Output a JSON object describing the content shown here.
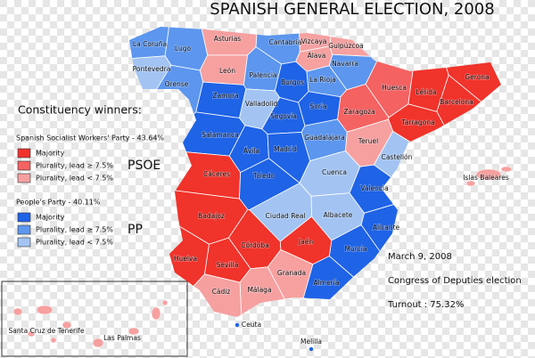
{
  "title": "SPANISH GENERAL ELECTION, 2008",
  "legend": {
    "heading": "Constituency winners:",
    "parties": [
      {
        "name": "Spanish Socialist Workers' Party - 43.64%",
        "short": "PSOE",
        "entries": [
          {
            "label": "Majority",
            "color": "#f0332b"
          },
          {
            "label": "Plurality, lead ≥ 7.5%",
            "color": "#f46262"
          },
          {
            "label": "Plurality, lead < 7.5%",
            "color": "#f6a0a0"
          }
        ]
      },
      {
        "name": "People's Party - 40.11%",
        "short": "PP",
        "entries": [
          {
            "label": "Majority",
            "color": "#1f63e6"
          },
          {
            "label": "Plurality, lead ≥ 7.5%",
            "color": "#5c96ee"
          },
          {
            "label": "Plurality, lead < 7.5%",
            "color": "#a3c4f3"
          }
        ]
      }
    ]
  },
  "info": {
    "date": "March 9, 2008",
    "election": "Congress of Deputies election",
    "turnout": "Turnout : 75.32%"
  },
  "provinces": [
    {
      "name": "La Coruña",
      "color": "#5c96ee"
    },
    {
      "name": "Lugo",
      "color": "#5c96ee"
    },
    {
      "name": "Pontevedra",
      "color": "#a3c4f3"
    },
    {
      "name": "Orense",
      "color": "#5c96ee"
    },
    {
      "name": "Asturias",
      "color": "#f6a0a0"
    },
    {
      "name": "Cantabria",
      "color": "#5c96ee"
    },
    {
      "name": "Vizcaya",
      "color": "#f6a0a0"
    },
    {
      "name": "Gulpúzcoa",
      "color": "#f6a0a0"
    },
    {
      "name": "Álava",
      "color": "#f6a0a0"
    },
    {
      "name": "Navarra",
      "color": "#5c96ee"
    },
    {
      "name": "León",
      "color": "#f6a0a0"
    },
    {
      "name": "Palencia",
      "color": "#5c96ee"
    },
    {
      "name": "Burgos",
      "color": "#1f63e6"
    },
    {
      "name": "La Rioja",
      "color": "#5c96ee"
    },
    {
      "name": "Zamora",
      "color": "#1f63e6"
    },
    {
      "name": "Valladolid",
      "color": "#a3c4f3"
    },
    {
      "name": "Soria",
      "color": "#1f63e6"
    },
    {
      "name": "Segovia",
      "color": "#1f63e6"
    },
    {
      "name": "Salamanca",
      "color": "#1f63e6"
    },
    {
      "name": "Ávila",
      "color": "#1f63e6"
    },
    {
      "name": "Madrid",
      "color": "#1f63e6"
    },
    {
      "name": "Guadalajara",
      "color": "#5c96ee"
    },
    {
      "name": "Huesca",
      "color": "#f46262"
    },
    {
      "name": "Lérida",
      "color": "#f0332b"
    },
    {
      "name": "Gerona",
      "color": "#f0332b"
    },
    {
      "name": "Barcelona",
      "color": "#f0332b"
    },
    {
      "name": "Zaragoza",
      "color": "#f46262"
    },
    {
      "name": "Tarragona",
      "color": "#f0332b"
    },
    {
      "name": "Teruel",
      "color": "#f6a0a0"
    },
    {
      "name": "Castellón",
      "color": "#a3c4f3"
    },
    {
      "name": "Cáceres",
      "color": "#f0332b"
    },
    {
      "name": "Toledo",
      "color": "#1f63e6"
    },
    {
      "name": "Cuenca",
      "color": "#a3c4f3"
    },
    {
      "name": "Valencia",
      "color": "#1f63e6"
    },
    {
      "name": "Badajoz",
      "color": "#f0332b"
    },
    {
      "name": "Ciudad Real",
      "color": "#a3c4f3"
    },
    {
      "name": "Albacete",
      "color": "#a3c4f3"
    },
    {
      "name": "Alicante",
      "color": "#1f63e6"
    },
    {
      "name": "Murcia",
      "color": "#1f63e6"
    },
    {
      "name": "Córdoba",
      "color": "#f0332b"
    },
    {
      "name": "Jaén",
      "color": "#f0332b"
    },
    {
      "name": "Huelva",
      "color": "#f0332b"
    },
    {
      "name": "Sevilla",
      "color": "#f0332b"
    },
    {
      "name": "Granada",
      "color": "#f6a0a0"
    },
    {
      "name": "Almería",
      "color": "#1f63e6"
    },
    {
      "name": "Málaga",
      "color": "#f6a0a0"
    },
    {
      "name": "Cádiz",
      "color": "#f6a0a0"
    },
    {
      "name": "Islas Baleares",
      "color": "#f6a0a0"
    },
    {
      "name": "Santa Cruz de Tenerife",
      "color": "#f6a0a0"
    },
    {
      "name": "Las Palmas",
      "color": "#f6a0a0"
    },
    {
      "name": "Ceuta",
      "color": "#1f63e6"
    },
    {
      "name": "Melilla",
      "color": "#1f63e6"
    }
  ]
}
